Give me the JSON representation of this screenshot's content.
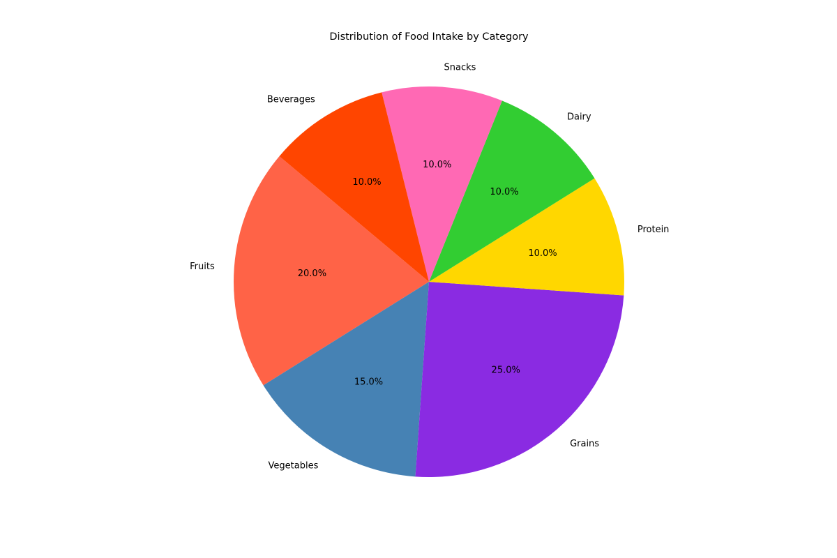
{
  "chart_data": {
    "type": "pie",
    "title": "Distribution of Food Intake by Category",
    "categories": [
      "Fruits",
      "Vegetables",
      "Grains",
      "Protein",
      "Dairy",
      "Snacks",
      "Beverages"
    ],
    "values": [
      20.0,
      15.0,
      25.0,
      10.0,
      10.0,
      10.0,
      10.0
    ],
    "percent_labels": [
      "20.0%",
      "15.0%",
      "25.0%",
      "10.0%",
      "10.0%",
      "10.0%",
      "10.0%"
    ],
    "colors": [
      "#FF6347",
      "#4682B4",
      "#8A2BE2",
      "#FFD700",
      "#32CD32",
      "#FF69B4",
      "#FF4500"
    ],
    "start_angle_deg": 140,
    "direction": "counterclockwise",
    "legend": "none"
  }
}
